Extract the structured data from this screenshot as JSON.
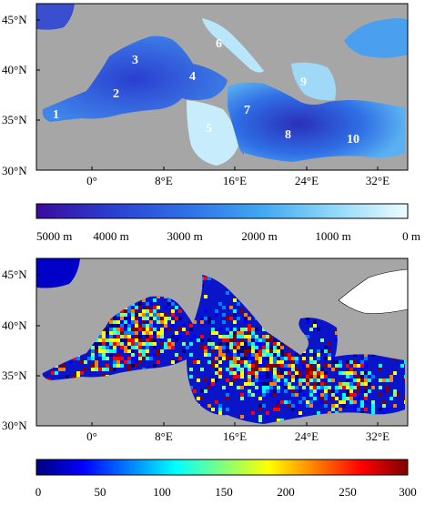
{
  "top_map": {
    "lat_labels": [
      "45°N",
      "40°N",
      "35°N",
      "30°N"
    ],
    "lon_labels": [
      "0°",
      "8°E",
      "16°E",
      "24°E",
      "32°E"
    ],
    "regions": [
      "1",
      "2",
      "3",
      "4",
      "5",
      "6",
      "7",
      "8",
      "9",
      "10"
    ],
    "colorbar_labels": [
      "5000 m",
      "4000 m",
      "3000 m",
      "2000 m",
      "1000 m",
      "0 m"
    ],
    "colorbar_stops": [
      "#3a0a9e",
      "#2a3fd0",
      "#2f6fe6",
      "#3fa6f2",
      "#8fd8f8",
      "#eefbff"
    ]
  },
  "bottom_map": {
    "lat_labels": [
      "45°N",
      "40°N",
      "35°N",
      "30°N"
    ],
    "lon_labels": [
      "0°",
      "8°E",
      "16°E",
      "24°E",
      "32°E"
    ],
    "colorbar_labels": [
      "0",
      "50",
      "100",
      "150",
      "200",
      "250",
      "300"
    ],
    "colorbar_stops": [
      "#00007f",
      "#0000ff",
      "#0080ff",
      "#00ffff",
      "#80ff80",
      "#ffff00",
      "#ff8000",
      "#ff0000",
      "#7f0000"
    ]
  }
}
